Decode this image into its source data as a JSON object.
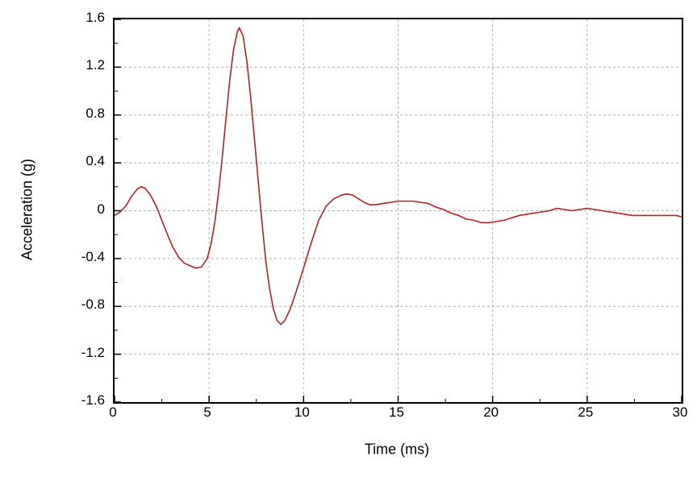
{
  "chart_data": {
    "type": "line",
    "title": "",
    "xlabel": "Time (ms)",
    "ylabel": "Acceleration (g)",
    "xlim": [
      0,
      30
    ],
    "ylim": [
      -1.6,
      1.6
    ],
    "x_ticks": [
      0,
      5,
      10,
      15,
      20,
      25,
      30
    ],
    "y_ticks": [
      -1.6,
      -1.2,
      -0.8,
      -0.4,
      0,
      0.4,
      0.8,
      1.2,
      1.6
    ],
    "x_minor_step": 2.5,
    "y_minor_step": 0.2,
    "grid": "dashed",
    "grid_color": "#b0b0b0",
    "line_color": "#b22222",
    "legend": "none",
    "series": [
      {
        "name": "acceleration",
        "points": [
          [
            0.0,
            -0.04
          ],
          [
            0.3,
            -0.01
          ],
          [
            0.6,
            0.04
          ],
          [
            0.9,
            0.12
          ],
          [
            1.2,
            0.18
          ],
          [
            1.4,
            0.2
          ],
          [
            1.6,
            0.19
          ],
          [
            1.9,
            0.13
          ],
          [
            2.2,
            0.04
          ],
          [
            2.5,
            -0.08
          ],
          [
            2.8,
            -0.2
          ],
          [
            3.1,
            -0.31
          ],
          [
            3.4,
            -0.39
          ],
          [
            3.7,
            -0.44
          ],
          [
            4.0,
            -0.46
          ],
          [
            4.3,
            -0.48
          ],
          [
            4.6,
            -0.47
          ],
          [
            4.9,
            -0.4
          ],
          [
            5.1,
            -0.28
          ],
          [
            5.3,
            -0.1
          ],
          [
            5.5,
            0.15
          ],
          [
            5.7,
            0.45
          ],
          [
            5.9,
            0.78
          ],
          [
            6.1,
            1.1
          ],
          [
            6.3,
            1.35
          ],
          [
            6.5,
            1.5
          ],
          [
            6.6,
            1.53
          ],
          [
            6.8,
            1.46
          ],
          [
            7.0,
            1.25
          ],
          [
            7.2,
            0.95
          ],
          [
            7.4,
            0.6
          ],
          [
            7.6,
            0.25
          ],
          [
            7.8,
            -0.1
          ],
          [
            8.0,
            -0.42
          ],
          [
            8.2,
            -0.65
          ],
          [
            8.4,
            -0.82
          ],
          [
            8.6,
            -0.92
          ],
          [
            8.8,
            -0.95
          ],
          [
            9.0,
            -0.92
          ],
          [
            9.3,
            -0.82
          ],
          [
            9.6,
            -0.68
          ],
          [
            10.0,
            -0.48
          ],
          [
            10.4,
            -0.27
          ],
          [
            10.8,
            -0.08
          ],
          [
            11.2,
            0.04
          ],
          [
            11.6,
            0.1
          ],
          [
            12.0,
            0.13
          ],
          [
            12.3,
            0.14
          ],
          [
            12.6,
            0.13
          ],
          [
            12.9,
            0.1
          ],
          [
            13.2,
            0.07
          ],
          [
            13.5,
            0.05
          ],
          [
            13.8,
            0.05
          ],
          [
            14.2,
            0.06
          ],
          [
            14.6,
            0.07
          ],
          [
            15.0,
            0.08
          ],
          [
            15.4,
            0.08
          ],
          [
            15.8,
            0.08
          ],
          [
            16.2,
            0.07
          ],
          [
            16.6,
            0.06
          ],
          [
            17.0,
            0.03
          ],
          [
            17.4,
            0.01
          ],
          [
            17.8,
            -0.02
          ],
          [
            18.2,
            -0.04
          ],
          [
            18.6,
            -0.07
          ],
          [
            19.0,
            -0.08
          ],
          [
            19.4,
            -0.1
          ],
          [
            19.8,
            -0.1
          ],
          [
            20.2,
            -0.09
          ],
          [
            20.6,
            -0.08
          ],
          [
            21.0,
            -0.06
          ],
          [
            21.4,
            -0.04
          ],
          [
            21.8,
            -0.03
          ],
          [
            22.2,
            -0.02
          ],
          [
            22.6,
            -0.01
          ],
          [
            23.0,
            0.0
          ],
          [
            23.4,
            0.02
          ],
          [
            23.8,
            0.01
          ],
          [
            24.2,
            0.0
          ],
          [
            24.6,
            0.01
          ],
          [
            25.0,
            0.02
          ],
          [
            25.4,
            0.01
          ],
          [
            25.8,
            0.0
          ],
          [
            26.2,
            -0.01
          ],
          [
            26.6,
            -0.02
          ],
          [
            27.0,
            -0.03
          ],
          [
            27.4,
            -0.04
          ],
          [
            27.8,
            -0.04
          ],
          [
            28.2,
            -0.04
          ],
          [
            28.6,
            -0.04
          ],
          [
            29.0,
            -0.04
          ],
          [
            29.4,
            -0.04
          ],
          [
            29.7,
            -0.04
          ],
          [
            30.0,
            -0.05
          ]
        ]
      }
    ]
  }
}
